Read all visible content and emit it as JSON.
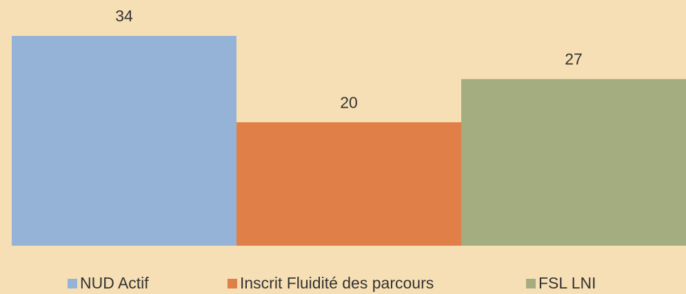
{
  "chart_data": {
    "type": "bar",
    "series": [
      {
        "name": "NUD Actif",
        "color": "#95b3d7",
        "values": [
          34
        ]
      },
      {
        "name": "Inscrit Fluidité des parcours",
        "color": "#e07f47",
        "values": [
          20
        ]
      },
      {
        "name": "FSL LNI",
        "color": "#a3ad80",
        "values": [
          27
        ]
      }
    ]
  }
}
